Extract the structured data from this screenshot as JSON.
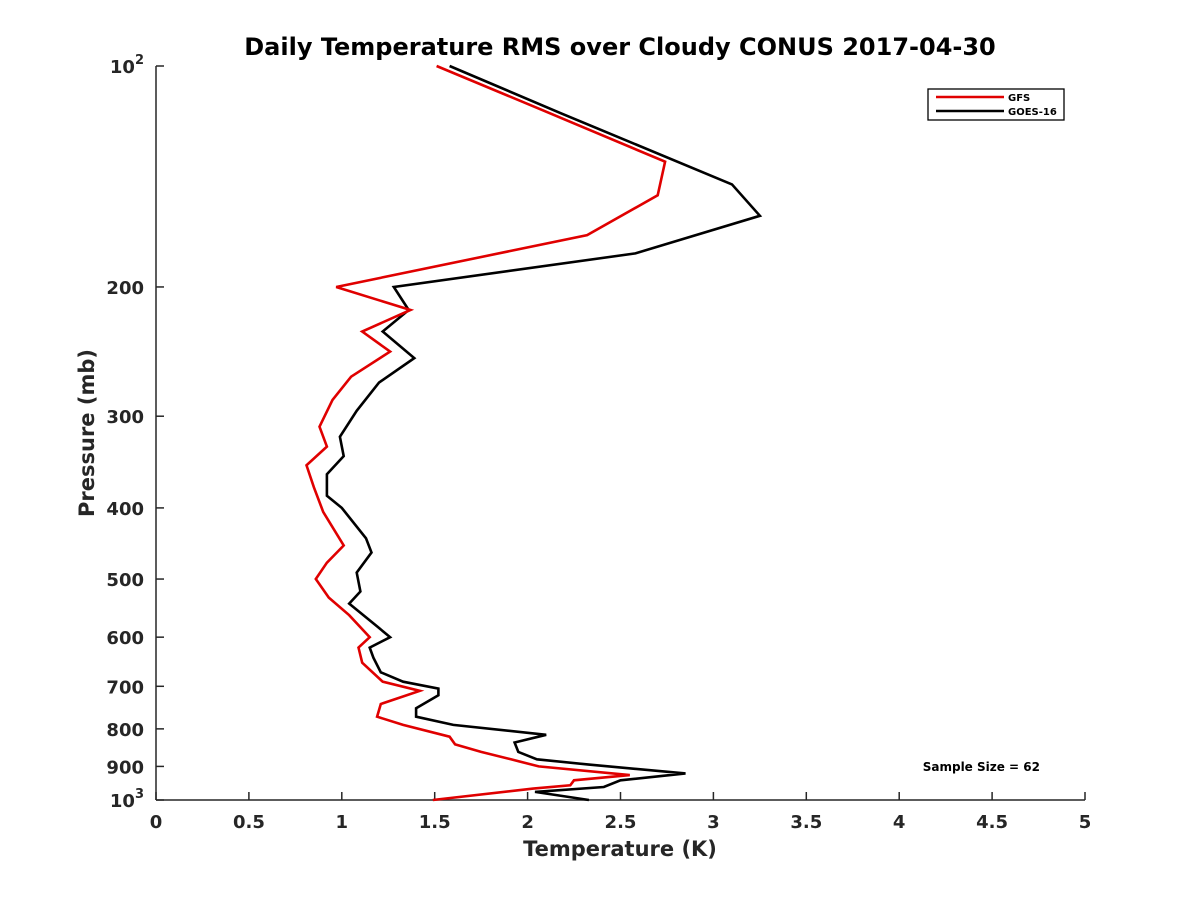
{
  "chart_data": {
    "type": "line",
    "title": "Daily Temperature RMS over Cloudy CONUS 2017-04-30",
    "xlabel": "Temperature (K)",
    "ylabel": "Pressure (mb)",
    "xlim": [
      0,
      5
    ],
    "ylim": [
      100,
      1000
    ],
    "yscale": "log",
    "yreversed": true,
    "grid": false,
    "legend_location": "top-right",
    "x_ticks": [
      {
        "value": 0,
        "label": "0"
      },
      {
        "value": 0.5,
        "label": "0.5"
      },
      {
        "value": 1,
        "label": "1"
      },
      {
        "value": 1.5,
        "label": "1.5"
      },
      {
        "value": 2,
        "label": "2"
      },
      {
        "value": 2.5,
        "label": "2.5"
      },
      {
        "value": 3,
        "label": "3"
      },
      {
        "value": 3.5,
        "label": "3.5"
      },
      {
        "value": 4,
        "label": "4"
      },
      {
        "value": 4.5,
        "label": "4.5"
      },
      {
        "value": 5,
        "label": "5"
      }
    ],
    "y_ticks": [
      {
        "value": 100,
        "base": "10",
        "exp": "2"
      },
      {
        "value": 200,
        "base": "200",
        "exp": ""
      },
      {
        "value": 300,
        "base": "300",
        "exp": ""
      },
      {
        "value": 400,
        "base": "400",
        "exp": ""
      },
      {
        "value": 500,
        "base": "500",
        "exp": ""
      },
      {
        "value": 600,
        "base": "600",
        "exp": ""
      },
      {
        "value": 700,
        "base": "700",
        "exp": ""
      },
      {
        "value": 800,
        "base": "800",
        "exp": ""
      },
      {
        "value": 900,
        "base": "900",
        "exp": ""
      },
      {
        "value": 1000,
        "base": "10",
        "exp": "3"
      }
    ],
    "annotation": "Sample Size = 62",
    "series": [
      {
        "name": "GFS",
        "color": "#e00000",
        "points": [
          [
            1.51,
            100
          ],
          [
            2.05,
            114
          ],
          [
            2.74,
            135
          ],
          [
            2.7,
            150
          ],
          [
            2.32,
            170
          ],
          [
            0.97,
            200
          ],
          [
            1.37,
            215
          ],
          [
            1.11,
            230
          ],
          [
            1.26,
            245
          ],
          [
            1.05,
            265
          ],
          [
            0.95,
            285
          ],
          [
            0.88,
            310
          ],
          [
            0.92,
            330
          ],
          [
            0.81,
            350
          ],
          [
            0.85,
            375
          ],
          [
            0.9,
            405
          ],
          [
            1.01,
            450
          ],
          [
            0.92,
            475
          ],
          [
            0.86,
            500
          ],
          [
            0.93,
            530
          ],
          [
            1.04,
            560
          ],
          [
            1.15,
            600
          ],
          [
            1.09,
            620
          ],
          [
            1.11,
            650
          ],
          [
            1.22,
            690
          ],
          [
            1.42,
            710
          ],
          [
            1.21,
            740
          ],
          [
            1.19,
            770
          ],
          [
            1.33,
            790
          ],
          [
            1.58,
            820
          ],
          [
            1.61,
            840
          ],
          [
            1.75,
            860
          ],
          [
            1.91,
            880
          ],
          [
            2.06,
            900
          ],
          [
            2.55,
            925
          ],
          [
            2.25,
            940
          ],
          [
            2.23,
            955
          ],
          [
            2.03,
            965
          ],
          [
            1.49,
            1000
          ]
        ]
      },
      {
        "name": "GOES-16",
        "color": "#000000",
        "points": [
          [
            1.58,
            100
          ],
          [
            2.18,
            116
          ],
          [
            3.1,
            145
          ],
          [
            3.25,
            160
          ],
          [
            2.58,
            180
          ],
          [
            1.28,
            200
          ],
          [
            1.36,
            215
          ],
          [
            1.22,
            230
          ],
          [
            1.39,
            250
          ],
          [
            1.2,
            270
          ],
          [
            1.08,
            295
          ],
          [
            0.99,
            320
          ],
          [
            1.01,
            340
          ],
          [
            0.92,
            360
          ],
          [
            0.92,
            385
          ],
          [
            1.0,
            400
          ],
          [
            1.13,
            440
          ],
          [
            1.16,
            460
          ],
          [
            1.08,
            490
          ],
          [
            1.1,
            520
          ],
          [
            1.04,
            540
          ],
          [
            1.19,
            580
          ],
          [
            1.26,
            600
          ],
          [
            1.15,
            620
          ],
          [
            1.17,
            640
          ],
          [
            1.21,
            670
          ],
          [
            1.33,
            690
          ],
          [
            1.52,
            705
          ],
          [
            1.52,
            720
          ],
          [
            1.4,
            750
          ],
          [
            1.4,
            770
          ],
          [
            1.6,
            790
          ],
          [
            2.1,
            815
          ],
          [
            1.93,
            835
          ],
          [
            1.95,
            860
          ],
          [
            2.05,
            880
          ],
          [
            2.33,
            895
          ],
          [
            2.85,
            920
          ],
          [
            2.5,
            940
          ],
          [
            2.41,
            960
          ],
          [
            2.04,
            975
          ],
          [
            2.33,
            1000
          ]
        ]
      }
    ]
  }
}
